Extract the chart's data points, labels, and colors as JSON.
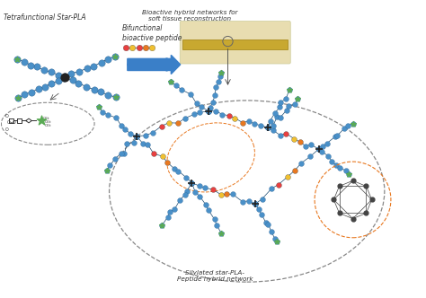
{
  "title": "",
  "bg_color": "#ffffff",
  "bead_color_blue": "#4a90c8",
  "bead_color_dark_blue": "#2a6090",
  "bead_color_green": "#5aaa55",
  "bead_color_red": "#e84040",
  "bead_color_yellow": "#f0c030",
  "bead_color_orange": "#e87820",
  "center_color": "#222222",
  "arrow_color": "#3a7fc8",
  "dashed_line_color": "#888888",
  "text_color": "#333333",
  "label_tetrafunctional": "Tetrafunctional Star-PLA",
  "label_bifunctional": "Bifunctional\nbioactive peptide",
  "label_bioactive": "Bioactive hybrid networks for\nsoft tissue reconstruction",
  "label_silylated": "Silylated star-PLA-\nPeptide hybrid network",
  "figsize": [
    4.74,
    3.32
  ],
  "dpi": 100
}
